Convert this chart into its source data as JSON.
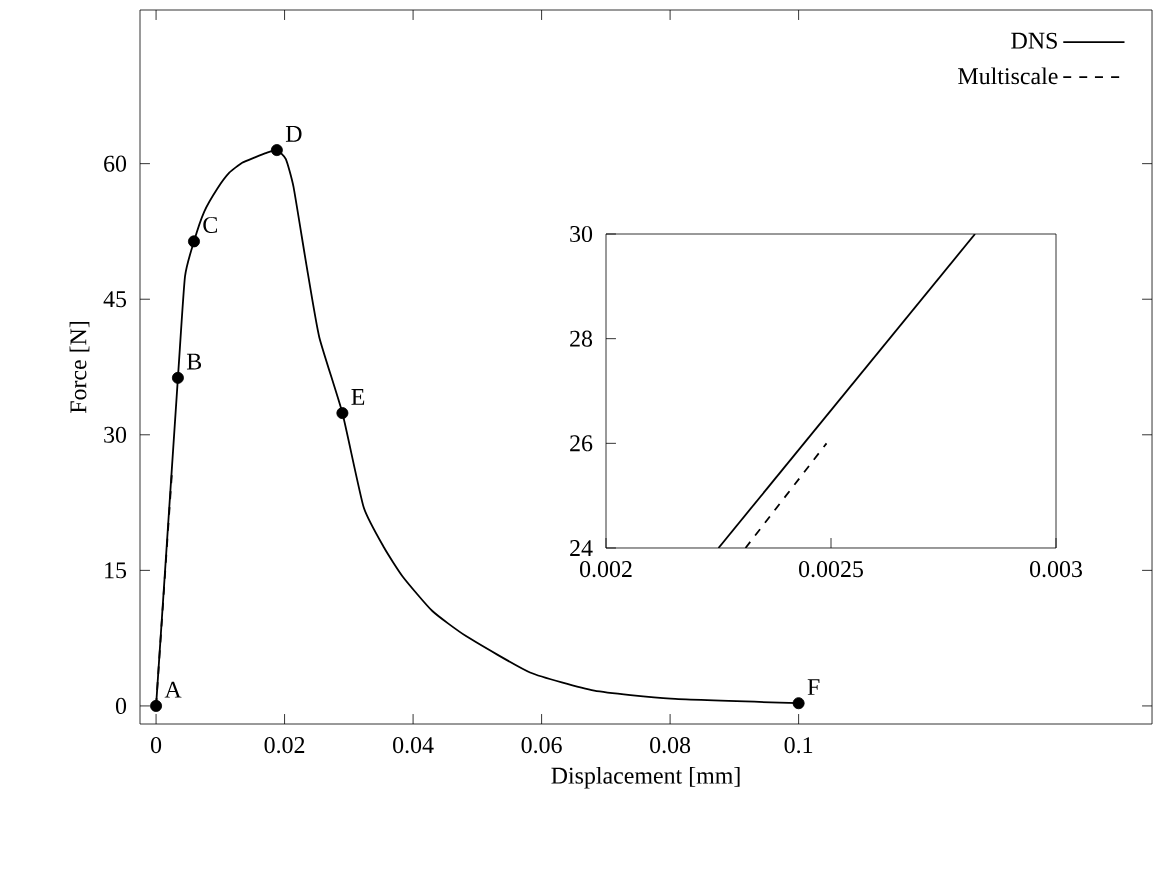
{
  "chart_data": [
    {
      "type": "line",
      "xlabel": "Displacement [mm]",
      "ylabel": "Force [N]",
      "xlim": [
        -0.0025,
        0.155
      ],
      "ylim": [
        -2,
        77
      ],
      "xticks": [
        0,
        0.02,
        0.04,
        0.06,
        0.08,
        0.1
      ],
      "yticks": [
        0,
        15,
        30,
        45,
        60
      ],
      "legend": "top right",
      "series": [
        {
          "name": "DNS",
          "color": "#000000",
          "line_style": "solid",
          "x": [
            0,
            0.0034,
            0.0045,
            0.0059,
            0.0075,
            0.0095,
            0.0114,
            0.0134,
            0.0154,
            0.0172,
            0.0188,
            0.0202,
            0.0214,
            0.0234,
            0.0254,
            0.029,
            0.0323,
            0.0355,
            0.0384,
            0.043,
            0.0483,
            0.0582,
            0.0682,
            0.0801,
            0.1
          ],
          "values": [
            0,
            36.3,
            47.5,
            51.4,
            54.7,
            57.2,
            59,
            60.1,
            60.7,
            61.2,
            61.5,
            60.5,
            57.4,
            48.8,
            40.8,
            32.4,
            22,
            17.5,
            14.3,
            10.5,
            7.7,
            3.7,
            1.7,
            0.8,
            0.3
          ]
        },
        {
          "name": "Multiscale",
          "color": "#000000",
          "line_style": "dashed",
          "x": [
            0,
            0.00249
          ],
          "values": [
            0,
            26
          ]
        },
        {
          "type": "scatter",
          "marker": "circle",
          "color": "#000000",
          "x": [
            0,
            0.0034,
            0.0059,
            0.0188,
            0.029,
            0.1
          ],
          "values": [
            0,
            36.3,
            51.4,
            61.5,
            32.4,
            0.3
          ]
        }
      ],
      "annotations": [
        {
          "text": "A",
          "x": 0,
          "y": 0
        },
        {
          "text": "B",
          "x": 0.0034,
          "y": 36.3
        },
        {
          "text": "C",
          "x": 0.0059,
          "y": 51.4
        },
        {
          "text": "D",
          "x": 0.0188,
          "y": 61.5
        },
        {
          "text": "E",
          "x": 0.029,
          "y": 32.4
        },
        {
          "text": "F",
          "x": 0.1,
          "y": 0.3
        }
      ]
    },
    {
      "type": "line",
      "xlim": [
        0.002,
        0.003
      ],
      "ylim": [
        24,
        30
      ],
      "xticks": [
        0.002,
        0.0025,
        0.003
      ],
      "yticks": [
        24,
        26,
        28,
        30
      ],
      "series": [
        {
          "color": "#000000",
          "line_style": "solid",
          "x": [
            0.00225,
            0.00282
          ],
          "values": [
            24,
            30
          ]
        },
        {
          "color": "#000000",
          "line_style": "dashed",
          "x": [
            0.00231,
            0.00249
          ],
          "values": [
            24,
            26
          ]
        }
      ]
    }
  ]
}
